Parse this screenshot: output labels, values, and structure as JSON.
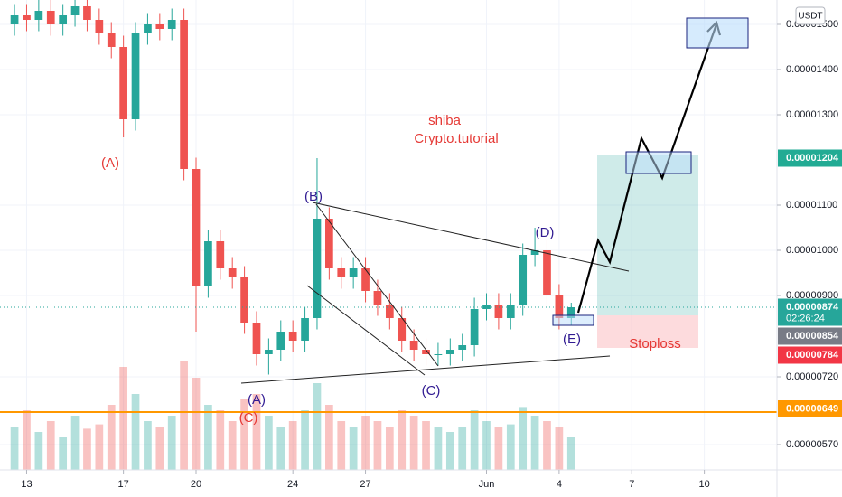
{
  "chart_data": {
    "type": "candlestick",
    "currency": "USDT",
    "xlim": [
      11.9,
      44
    ],
    "ylim": [
      5.14e-06,
      1.554e-05
    ],
    "xticks": [
      13,
      17,
      20,
      24,
      27,
      {
        "value": 32,
        "label": "Jun"
      },
      {
        "value": 35,
        "label": "4"
      },
      {
        "value": 38,
        "label": "7"
      },
      {
        "value": 41,
        "label": "10"
      }
    ],
    "yticks": [
      {
        "value": 1.5e-05,
        "label": "0.00001500"
      },
      {
        "value": 1.4e-05,
        "label": "0.00001400"
      },
      {
        "value": 1.3e-05,
        "label": "0.00001300"
      },
      {
        "value": 1.1e-05,
        "label": "0.00001100"
      },
      {
        "value": 1e-05,
        "label": "0.00001000"
      },
      {
        "value": 9e-06,
        "label": "0.00000900"
      },
      {
        "value": 7.2e-06,
        "label": "0.00000720"
      },
      {
        "value": 5.7e-06,
        "label": "0.00000570"
      }
    ],
    "grid": true,
    "up_color": "#26a69a",
    "down_color": "#ef5350",
    "x": [
      12.5,
      13,
      13.5,
      14,
      14.5,
      15,
      15.5,
      16,
      16.5,
      17,
      17.5,
      18,
      18.5,
      19,
      19.5,
      20,
      20.5,
      21,
      21.5,
      22,
      22.5,
      23,
      23.5,
      24,
      24.5,
      25,
      25.5,
      26,
      26.5,
      27,
      27.5,
      28,
      28.5,
      29,
      29.5,
      30,
      30.5,
      31,
      31.5,
      32,
      32.5,
      33,
      33.5,
      34,
      34.5,
      35,
      35.5
    ],
    "open": [
      1.5e-05,
      1.52e-05,
      1.51e-05,
      1.53e-05,
      1.5e-05,
      1.52e-05,
      1.54e-05,
      1.51e-05,
      1.48e-05,
      1.45e-05,
      1.29e-05,
      1.48e-05,
      1.5e-05,
      1.49e-05,
      1.51e-05,
      1.18e-05,
      9.2e-06,
      1.02e-05,
      9.6e-06,
      9.4e-06,
      8.4e-06,
      7.7e-06,
      7.8e-06,
      8.2e-06,
      8e-06,
      8.5e-06,
      1.07e-05,
      9.6e-06,
      9.4e-06,
      9.6e-06,
      9.1e-06,
      8.8e-06,
      8.5e-06,
      8e-06,
      7.8e-06,
      7.7e-06,
      7.7e-06,
      7.8e-06,
      7.9e-06,
      8.7e-06,
      8.8e-06,
      8.5e-06,
      8.8e-06,
      9.9e-06,
      1e-05,
      9e-06,
      8.5e-06
    ],
    "high": [
      1.545e-05,
      1.545e-05,
      1.555e-05,
      1.555e-05,
      1.545e-05,
      1.565e-05,
      1.565e-05,
      1.535e-05,
      1.505e-05,
      1.475e-05,
      1.505e-05,
      1.525e-05,
      1.525e-05,
      1.535e-05,
      1.535e-05,
      1.205e-05,
      1.045e-05,
      1.045e-05,
      9.85e-06,
      9.65e-06,
      8.65e-06,
      8.05e-06,
      8.45e-06,
      8.45e-06,
      8.75e-06,
      1.204e-05,
      1.095e-05,
      9.85e-06,
      9.85e-06,
      9.85e-06,
      9.35e-06,
      9.05e-06,
      8.75e-06,
      8.25e-06,
      8.05e-06,
      7.95e-06,
      8.05e-06,
      8.15e-06,
      8.95e-06,
      9.05e-06,
      9.05e-06,
      9.05e-06,
      1.015e-05,
      1.05e-05,
      1.025e-05,
      9.25e-06,
      8.84e-06
    ],
    "low": [
      1.475e-05,
      1.485e-05,
      1.485e-05,
      1.475e-05,
      1.475e-05,
      1.495e-05,
      1.485e-05,
      1.455e-05,
      1.425e-05,
      1.25e-05,
      1.265e-05,
      1.455e-05,
      1.465e-05,
      1.465e-05,
      1.155e-05,
      8.2e-06,
      8.95e-06,
      9.35e-06,
      9.15e-06,
      8.15e-06,
      7.45e-06,
      7.25e-06,
      7.55e-06,
      7.75e-06,
      7.75e-06,
      8.25e-06,
      9.35e-06,
      9.15e-06,
      9.15e-06,
      8.85e-06,
      8.55e-06,
      8.25e-06,
      7.75e-06,
      7.55e-06,
      7.45e-06,
      7.45e-06,
      7.45e-06,
      7.55e-06,
      7.65e-06,
      8.45e-06,
      8.25e-06,
      8.25e-06,
      8.55e-06,
      9.65e-06,
      8.75e-06,
      8.25e-06,
      8.35e-06
    ],
    "close": [
      1.52e-05,
      1.51e-05,
      1.53e-05,
      1.5e-05,
      1.52e-05,
      1.54e-05,
      1.51e-05,
      1.48e-05,
      1.45e-05,
      1.29e-05,
      1.48e-05,
      1.5e-05,
      1.49e-05,
      1.51e-05,
      1.18e-05,
      9.2e-06,
      1.02e-05,
      9.6e-06,
      9.4e-06,
      8.4e-06,
      7.7e-06,
      7.8e-06,
      8.2e-06,
      8e-06,
      8.5e-06,
      1.07e-05,
      9.6e-06,
      9.4e-06,
      9.6e-06,
      9.1e-06,
      8.8e-06,
      8.5e-06,
      8e-06,
      7.8e-06,
      7.7e-06,
      7.7e-06,
      7.8e-06,
      7.9e-06,
      8.7e-06,
      8.8e-06,
      8.5e-06,
      8.8e-06,
      9.9e-06,
      1e-05,
      9e-06,
      8.5e-06,
      8.74e-06
    ],
    "volume": [
      40,
      55,
      35,
      45,
      30,
      50,
      38,
      42,
      60,
      95,
      70,
      45,
      40,
      50,
      100,
      85,
      60,
      55,
      45,
      65,
      70,
      50,
      40,
      45,
      55,
      80,
      60,
      45,
      40,
      50,
      45,
      40,
      55,
      50,
      45,
      40,
      35,
      40,
      55,
      45,
      40,
      42,
      58,
      50,
      45,
      40,
      30
    ],
    "price_badges": [
      {
        "value": 1.204e-05,
        "label": "0.00001204",
        "color": "#22ab94"
      },
      {
        "value": 8.74e-06,
        "label": "0.00000874",
        "color": "#26a69a",
        "timer": "02:26:24"
      },
      {
        "value": 8.54e-06,
        "label": "0.00000854",
        "color": "#787b86"
      },
      {
        "value": 7.84e-06,
        "label": "0.00000784",
        "color": "#f23645"
      },
      {
        "value": 6.49e-06,
        "label": "0.00000649",
        "color": "#ff9800"
      }
    ],
    "labels": [
      "(A)",
      "shiba",
      "Crypto.tutorial",
      "(B)",
      "(D)",
      "(E)",
      "(C)",
      "(A)",
      "(C)",
      "Stoploss"
    ]
  }
}
